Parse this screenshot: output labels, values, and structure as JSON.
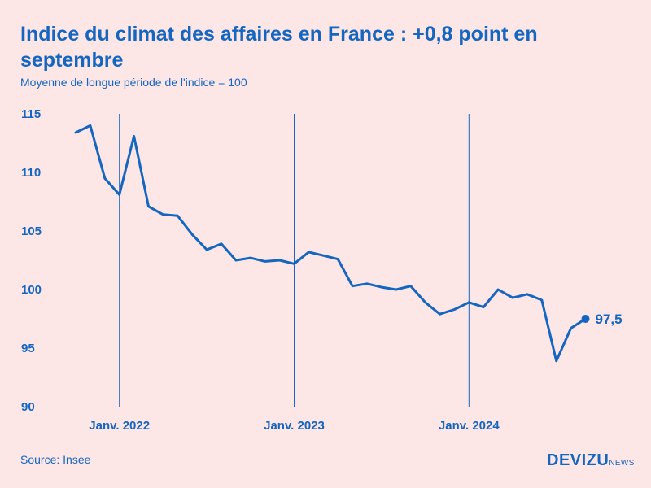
{
  "header": {
    "title": "Indice du climat des affaires en France : +0,8 point en septembre",
    "subtitle": "Moyenne de longue période de l'indice = 100"
  },
  "footer": {
    "source": "Source: Insee",
    "logo_main": "DEVIZU",
    "logo_sub": "NEWS"
  },
  "colors": {
    "line": "#1466c0",
    "background": "#fde6e6",
    "text": "#1466c0"
  },
  "chart_data": {
    "type": "line",
    "title": "Indice du climat des affaires en France : +0,8 point en septembre",
    "subtitle": "Moyenne de longue période de l'indice = 100",
    "xlabel": "",
    "ylabel": "",
    "ylim": [
      90,
      115
    ],
    "yticks": [
      115,
      110,
      105,
      100,
      95,
      90
    ],
    "grid": "vertical lines at January of each year",
    "x": [
      "2021-10",
      "2021-11",
      "2021-12",
      "2022-01",
      "2022-02",
      "2022-03",
      "2022-04",
      "2022-05",
      "2022-06",
      "2022-07",
      "2022-08",
      "2022-09",
      "2022-10",
      "2022-11",
      "2022-12",
      "2023-01",
      "2023-02",
      "2023-03",
      "2023-04",
      "2023-05",
      "2023-06",
      "2023-07",
      "2023-08",
      "2023-09",
      "2023-10",
      "2023-11",
      "2023-12",
      "2024-01",
      "2024-02",
      "2024-03",
      "2024-04",
      "2024-05",
      "2024-06",
      "2024-07",
      "2024-08",
      "2024-09"
    ],
    "series": [
      {
        "name": "Indice du climat des affaires",
        "values": [
          113.4,
          114.0,
          109.5,
          108.1,
          113.1,
          107.1,
          106.4,
          106.3,
          104.7,
          103.4,
          103.9,
          102.5,
          102.7,
          102.4,
          102.5,
          102.2,
          103.2,
          102.9,
          102.6,
          100.3,
          100.5,
          100.2,
          100.0,
          100.3,
          98.9,
          97.9,
          98.3,
          98.9,
          98.5,
          100.0,
          99.3,
          99.6,
          99.1,
          93.9,
          96.7,
          97.5
        ]
      }
    ],
    "xtick_labels": [
      {
        "x": "2022-01",
        "label": "Janv. 2022"
      },
      {
        "x": "2023-01",
        "label": "Janv. 2023"
      },
      {
        "x": "2024-01",
        "label": "Janv. 2024"
      }
    ],
    "annotations": [
      {
        "x": "2024-09",
        "label": "97,5"
      }
    ]
  }
}
